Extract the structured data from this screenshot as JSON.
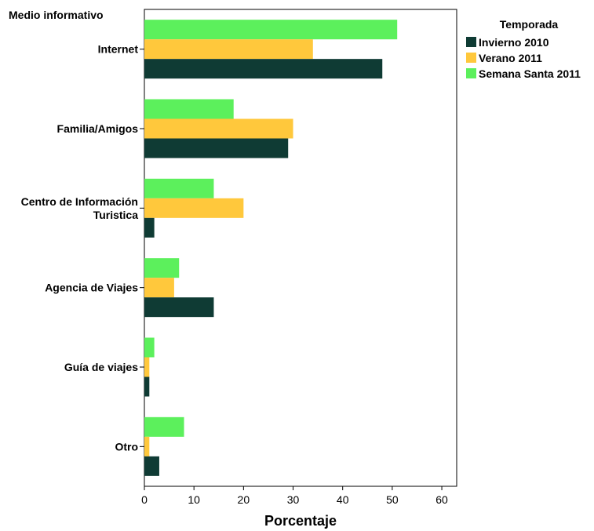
{
  "chart_data": {
    "type": "bar",
    "orientation": "horizontal",
    "y_axis_title": "Medio informativo",
    "xlabel": "Porcentaje",
    "xlim": [
      0,
      63
    ],
    "xticks": [
      0,
      10,
      20,
      30,
      40,
      50,
      60
    ],
    "categories": [
      [
        "Internet"
      ],
      [
        "Familia/Amigos"
      ],
      [
        "Centro de Información",
        "Turistica"
      ],
      [
        "Agencia de Viajes"
      ],
      [
        "Guía de viajes"
      ],
      [
        "Otro"
      ]
    ],
    "legend": {
      "title": "Temporada",
      "position": "right"
    },
    "series": [
      {
        "name": "Invierno 2010",
        "color": "#0f3b34",
        "values": [
          48,
          29,
          2,
          14,
          1,
          3
        ]
      },
      {
        "name": "Verano 2011",
        "color": "#ffc83c",
        "values": [
          34,
          30,
          20,
          6,
          1,
          1
        ]
      },
      {
        "name": "Semana Santa 2011",
        "color": "#5cf05c",
        "values": [
          51,
          18,
          14,
          7,
          2,
          8
        ]
      }
    ]
  }
}
